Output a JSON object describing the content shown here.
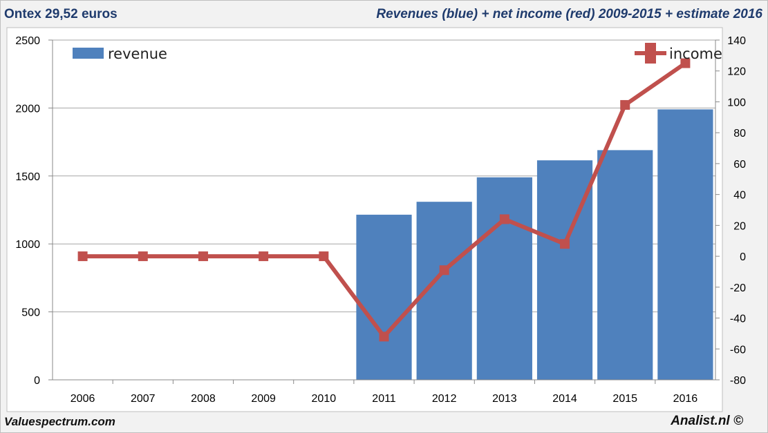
{
  "header": {
    "left_title": "Ontex 29,52 euros",
    "right_title": "Revenues (blue) + net income (red) 2009-2015 + estimate 2016"
  },
  "footer": {
    "left": "Valuespectrum.com",
    "right": "Analist.nl ©"
  },
  "chart_data": {
    "type": "bar",
    "title": "Revenues (blue) + net income (red) 2009-2015 + estimate 2016",
    "categories": [
      "2006",
      "2007",
      "2008",
      "2009",
      "2010",
      "2011",
      "2012",
      "2013",
      "2014",
      "2015",
      "2016"
    ],
    "series": [
      {
        "name": "revenue",
        "type": "bar",
        "axis": "left",
        "color": "#4f81bd",
        "values": [
          0,
          0,
          0,
          0,
          0,
          1215,
          1310,
          1490,
          1615,
          1690,
          1990
        ]
      },
      {
        "name": "income",
        "type": "line",
        "axis": "right",
        "color": "#c0504d",
        "values": [
          0,
          0,
          0,
          0,
          0,
          -52,
          -9,
          24,
          8,
          98,
          125
        ]
      }
    ],
    "left_axis": {
      "ylim": [
        0,
        2500
      ],
      "ticks": [
        "0",
        "500",
        "1000",
        "1500",
        "2000",
        "2500"
      ]
    },
    "right_axis": {
      "ylim": [
        -80,
        140
      ],
      "ticks": [
        "-80",
        "-60",
        "-40",
        "-20",
        "0",
        "20",
        "40",
        "60",
        "80",
        "100",
        "120",
        "140"
      ]
    },
    "legend": [
      {
        "label": "revenue",
        "position": "top-left"
      },
      {
        "label": "income",
        "position": "top-right"
      }
    ],
    "grid": true
  }
}
